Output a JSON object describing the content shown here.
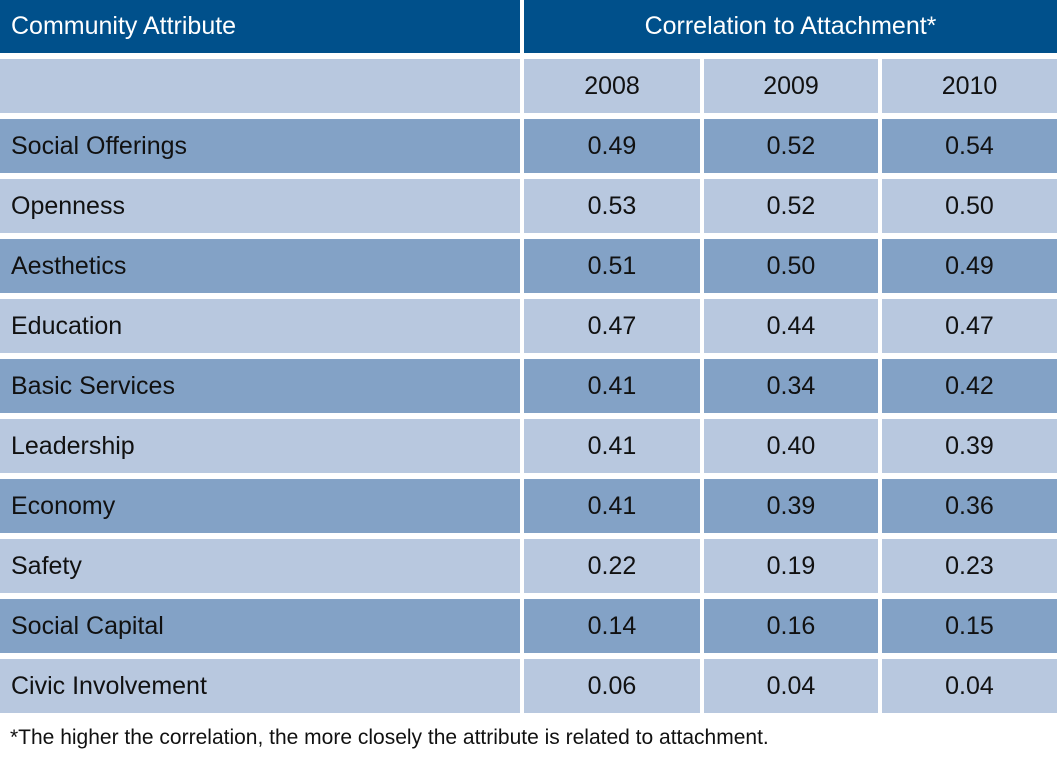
{
  "chart_data": {
    "type": "table",
    "header": {
      "attribute": "Community Attribute",
      "correlation": "Correlation to Attachment*"
    },
    "years": [
      "2008",
      "2009",
      "2010"
    ],
    "rows": [
      {
        "name": "Social Offerings",
        "values": [
          "0.49",
          "0.52",
          "0.54"
        ]
      },
      {
        "name": "Openness",
        "values": [
          "0.53",
          "0.52",
          "0.50"
        ]
      },
      {
        "name": "Aesthetics",
        "values": [
          "0.51",
          "0.50",
          "0.49"
        ]
      },
      {
        "name": "Education",
        "values": [
          "0.47",
          "0.44",
          "0.47"
        ]
      },
      {
        "name": "Basic Services",
        "values": [
          "0.41",
          "0.34",
          "0.42"
        ]
      },
      {
        "name": "Leadership",
        "values": [
          "0.41",
          "0.40",
          "0.39"
        ]
      },
      {
        "name": "Economy",
        "values": [
          "0.41",
          "0.39",
          "0.36"
        ]
      },
      {
        "name": "Safety",
        "values": [
          "0.22",
          "0.19",
          "0.23"
        ]
      },
      {
        "name": "Social Capital",
        "values": [
          "0.14",
          "0.16",
          "0.15"
        ]
      },
      {
        "name": "Civic Involvement",
        "values": [
          "0.06",
          "0.04",
          "0.04"
        ]
      }
    ],
    "footnote": "*The higher the correlation, the more closely the attribute is related to attachment.",
    "colors": {
      "header": "#00508b",
      "row_light": "#b8c8df",
      "row_dark": "#83a2c6"
    }
  }
}
